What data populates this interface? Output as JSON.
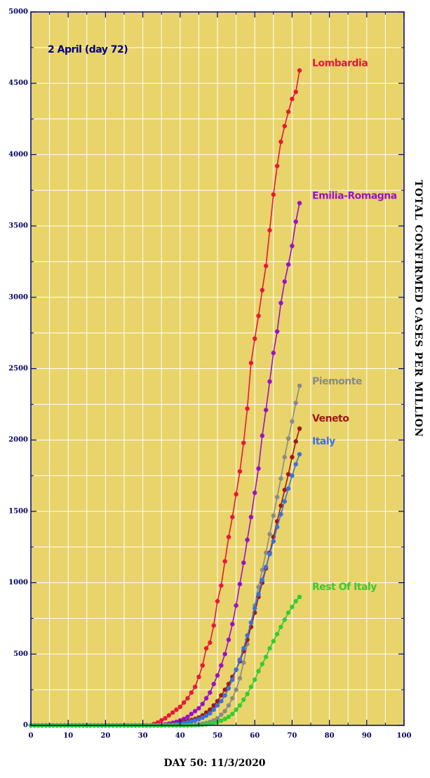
{
  "chart_data": {
    "type": "line",
    "annotation": "2 April  (day 72)",
    "xlabel": "DAY 50: 11/3/2020",
    "ylabel": "TOTAL CONFIRMED CASES PER MILLION",
    "xlim": [
      0,
      100
    ],
    "ylim": [
      0,
      5000
    ],
    "xticks": [
      0,
      10,
      20,
      30,
      40,
      50,
      60,
      70,
      80,
      90,
      100
    ],
    "yticks": [
      0,
      500,
      1000,
      1500,
      2000,
      2500,
      3000,
      3500,
      4000,
      4500,
      5000
    ],
    "x_minor_grid": [
      5,
      15,
      25,
      35,
      45,
      55,
      65,
      75,
      85,
      95
    ],
    "y_minor_grid": [
      250,
      750,
      1250,
      1750,
      2250,
      2750,
      3250,
      3750,
      4250,
      4750
    ],
    "grid": true,
    "background": "#e8d46a",
    "x": [
      0,
      1,
      2,
      3,
      4,
      5,
      6,
      7,
      8,
      9,
      10,
      11,
      12,
      13,
      14,
      15,
      16,
      17,
      18,
      19,
      20,
      21,
      22,
      23,
      24,
      25,
      26,
      27,
      28,
      29,
      30,
      31,
      32,
      33,
      34,
      35,
      36,
      37,
      38,
      39,
      40,
      41,
      42,
      43,
      44,
      45,
      46,
      47,
      48,
      49,
      50,
      51,
      52,
      53,
      54,
      55,
      56,
      57,
      58,
      59,
      60,
      61,
      62,
      63,
      64,
      65,
      66,
      67,
      68,
      69,
      70,
      71,
      72
    ],
    "series": [
      {
        "name": "Lombardia",
        "color": "#e8173a",
        "values": [
          0,
          0,
          0,
          0,
          0,
          0,
          0,
          0,
          0,
          0,
          0,
          0,
          0,
          0,
          0,
          0,
          0,
          0,
          0,
          0,
          0,
          0,
          0,
          0,
          0,
          0,
          0,
          0,
          0,
          0,
          0,
          0,
          0,
          10,
          20,
          35,
          50,
          70,
          90,
          110,
          130,
          160,
          190,
          230,
          270,
          340,
          420,
          540,
          580,
          700,
          870,
          980,
          1150,
          1320,
          1460,
          1620,
          1780,
          1980,
          2220,
          2540,
          2710,
          2870,
          3050,
          3220,
          3470,
          3720,
          3920,
          4090,
          4200,
          4300,
          4390,
          4440,
          4590
        ]
      },
      {
        "name": "Emilia-Romagna",
        "color": "#9a10c8",
        "values": [
          0,
          0,
          0,
          0,
          0,
          0,
          0,
          0,
          0,
          0,
          0,
          0,
          0,
          0,
          0,
          0,
          0,
          0,
          0,
          0,
          0,
          0,
          0,
          0,
          0,
          0,
          0,
          0,
          0,
          0,
          0,
          0,
          0,
          1,
          2,
          4,
          7,
          12,
          18,
          25,
          35,
          45,
          60,
          80,
          100,
          120,
          150,
          190,
          230,
          290,
          350,
          420,
          500,
          600,
          710,
          840,
          990,
          1140,
          1300,
          1460,
          1630,
          1800,
          2030,
          2210,
          2410,
          2610,
          2760,
          2960,
          3110,
          3230,
          3360,
          3530,
          3660
        ]
      },
      {
        "name": "Piemonte",
        "color": "#8a8a8a",
        "values": [
          0,
          0,
          0,
          0,
          0,
          0,
          0,
          0,
          0,
          0,
          0,
          0,
          0,
          0,
          0,
          0,
          0,
          0,
          0,
          0,
          0,
          0,
          0,
          0,
          0,
          0,
          0,
          0,
          0,
          0,
          0,
          0,
          0,
          0,
          0,
          0,
          0,
          0,
          0,
          0,
          0,
          1,
          2,
          3,
          5,
          8,
          12,
          17,
          25,
          35,
          50,
          75,
          100,
          140,
          190,
          250,
          330,
          440,
          570,
          720,
          840,
          970,
          1090,
          1210,
          1340,
          1470,
          1600,
          1730,
          1880,
          2010,
          2130,
          2260,
          2380
        ]
      },
      {
        "name": "Veneto",
        "color": "#a01818",
        "values": [
          0,
          0,
          0,
          0,
          0,
          0,
          0,
          0,
          0,
          0,
          0,
          0,
          0,
          0,
          0,
          0,
          0,
          0,
          0,
          0,
          0,
          0,
          0,
          0,
          0,
          0,
          0,
          0,
          0,
          0,
          0,
          0,
          0,
          0,
          0,
          1,
          3,
          6,
          10,
          15,
          20,
          25,
          30,
          38,
          45,
          55,
          70,
          90,
          110,
          140,
          170,
          210,
          250,
          290,
          340,
          390,
          450,
          520,
          600,
          690,
          790,
          900,
          1000,
          1100,
          1210,
          1320,
          1430,
          1540,
          1650,
          1760,
          1880,
          1990,
          2080
        ]
      },
      {
        "name": "Italy",
        "color": "#3a70e0",
        "values": [
          0,
          0,
          0,
          0,
          0,
          0,
          0,
          0,
          0,
          0,
          0,
          0,
          0,
          0,
          0,
          0,
          0,
          0,
          0,
          0,
          0,
          0,
          0,
          0,
          0,
          0,
          0,
          0,
          0,
          0,
          0,
          0,
          0,
          0,
          1,
          2,
          3,
          4,
          6,
          9,
          12,
          16,
          21,
          28,
          35,
          43,
          54,
          68,
          85,
          110,
          140,
          170,
          210,
          260,
          320,
          390,
          460,
          540,
          630,
          720,
          820,
          920,
          1020,
          1110,
          1200,
          1290,
          1390,
          1480,
          1570,
          1660,
          1750,
          1830,
          1900
        ]
      },
      {
        "name": "Rest Of Italy",
        "color": "#33cc33",
        "values": [
          0,
          0,
          0,
          0,
          0,
          0,
          0,
          0,
          0,
          0,
          0,
          0,
          0,
          0,
          0,
          0,
          0,
          0,
          0,
          0,
          0,
          0,
          0,
          0,
          0,
          0,
          0,
          0,
          0,
          0,
          0,
          0,
          0,
          0,
          0,
          0,
          0,
          0,
          0,
          0,
          0,
          0,
          0,
          1,
          2,
          3,
          5,
          8,
          12,
          17,
          24,
          33,
          45,
          60,
          80,
          110,
          140,
          180,
          220,
          270,
          320,
          380,
          430,
          480,
          540,
          590,
          640,
          690,
          740,
          790,
          830,
          870,
          900
        ]
      }
    ]
  }
}
